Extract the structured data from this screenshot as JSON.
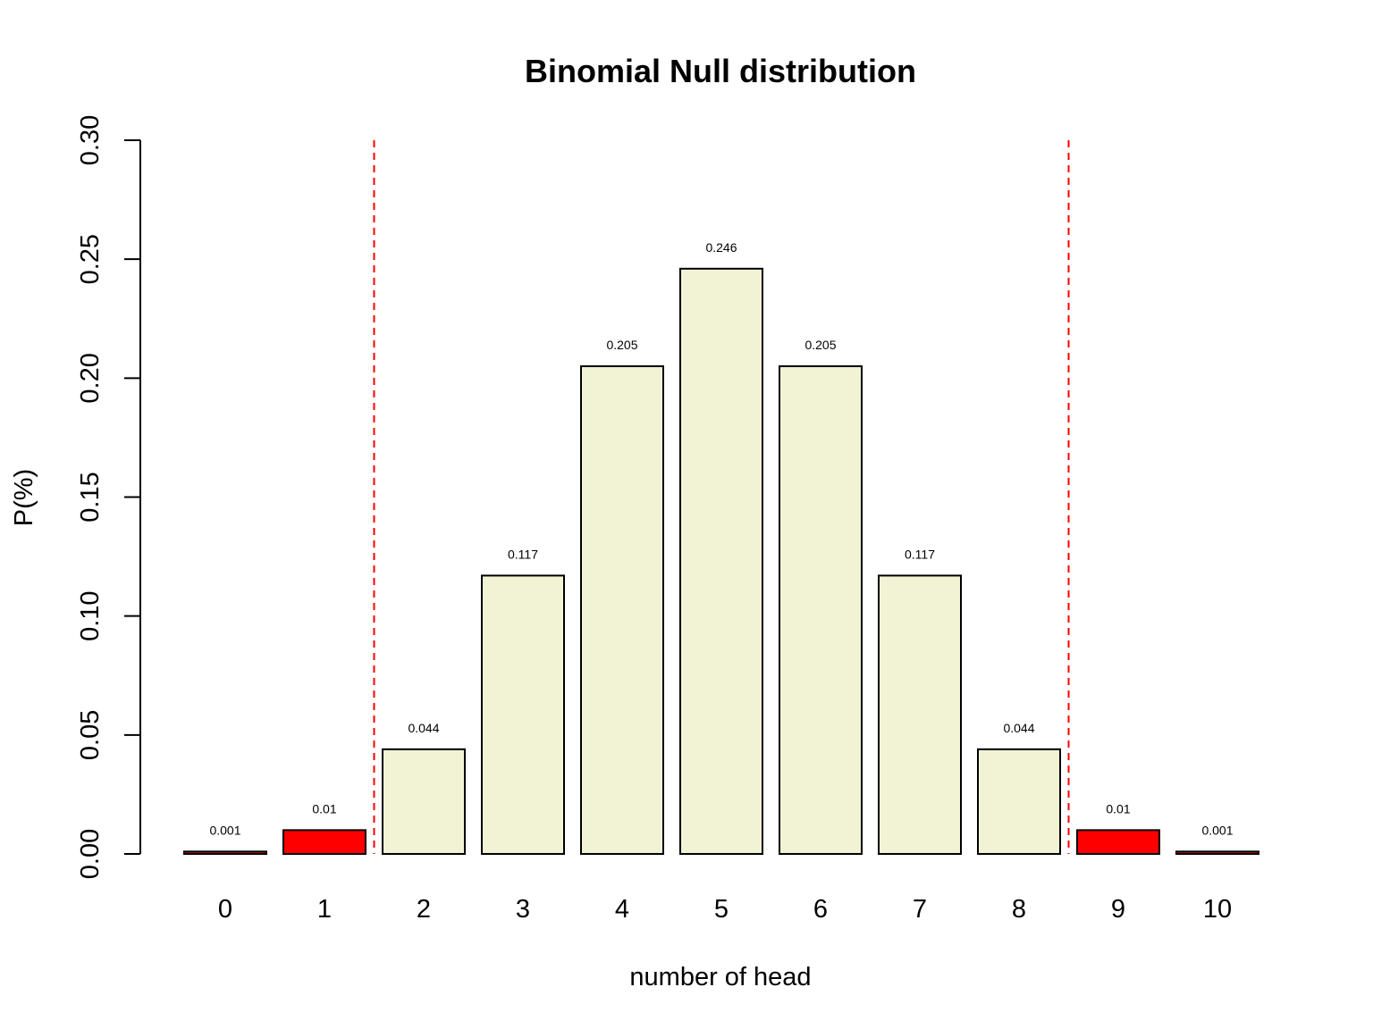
{
  "chart_data": {
    "type": "bar",
    "title": "Binomial Null distribution",
    "xlabel": "number of head",
    "ylabel": "P(%)",
    "categories": [
      "0",
      "1",
      "2",
      "3",
      "4",
      "5",
      "6",
      "7",
      "8",
      "9",
      "10"
    ],
    "values": [
      0.001,
      0.01,
      0.044,
      0.117,
      0.205,
      0.246,
      0.205,
      0.117,
      0.044,
      0.01,
      0.001
    ],
    "data_labels": [
      "0.001",
      "0.01",
      "0.044",
      "0.117",
      "0.205",
      "0.246",
      "0.205",
      "0.117",
      "0.044",
      "0.01",
      "0.001"
    ],
    "bar_colors": [
      "#ff0000",
      "#ff0000",
      "#f2f2d5",
      "#f2f2d5",
      "#f2f2d5",
      "#f2f2d5",
      "#f2f2d5",
      "#f2f2d5",
      "#f2f2d5",
      "#ff0000",
      "#ff0000"
    ],
    "ylim": [
      0,
      0.3
    ],
    "yticks": [
      "0.00",
      "0.05",
      "0.10",
      "0.15",
      "0.20",
      "0.25",
      "0.30"
    ],
    "ytick_values": [
      0,
      0.05,
      0.1,
      0.15,
      0.2,
      0.25,
      0.3
    ],
    "reference_lines": [
      {
        "between": [
          1,
          2
        ],
        "style": "dashed",
        "color": "#ff0000"
      },
      {
        "between": [
          8,
          9
        ],
        "style": "dashed",
        "color": "#ff0000"
      }
    ],
    "grid": false,
    "legend": "none"
  }
}
